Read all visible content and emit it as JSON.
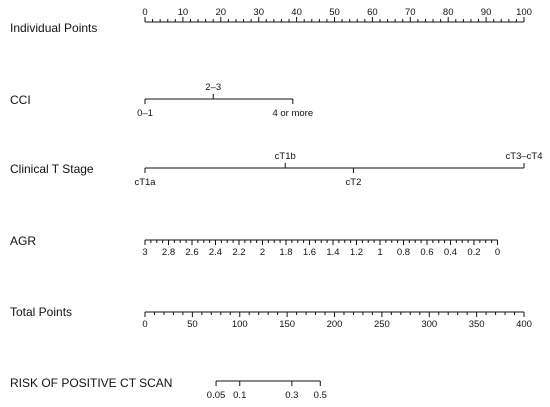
{
  "chart_data": {
    "type": "nomogram",
    "rows": [
      {
        "id": "points",
        "label": "Individual Points",
        "kind": "linear",
        "range": [
          0,
          100
        ],
        "minor_step": 2,
        "major_step": 10,
        "tick_labels": [
          "0",
          "10",
          "20",
          "30",
          "40",
          "50",
          "60",
          "70",
          "80",
          "90",
          "100"
        ],
        "label_side": "above"
      },
      {
        "id": "cci",
        "label": "CCI",
        "kind": "categorical",
        "categories": [
          {
            "label": "0–1",
            "points": 0,
            "side": "below"
          },
          {
            "label": "2–3",
            "points": 18,
            "side": "above"
          },
          {
            "label": "4 or more",
            "points": 39,
            "side": "below"
          }
        ]
      },
      {
        "id": "t_stage",
        "label": "Clinical T Stage",
        "kind": "categorical",
        "categories": [
          {
            "label": "cT1a",
            "points": 0,
            "side": "below"
          },
          {
            "label": "cT1b",
            "points": 37,
            "side": "above"
          },
          {
            "label": "cT2",
            "points": 55,
            "side": "below"
          },
          {
            "label": "cT3–cT4",
            "points": 100,
            "side": "above"
          }
        ]
      },
      {
        "id": "agr",
        "label": "AGR",
        "kind": "linear",
        "values_at_points": [
          [
            3,
            0
          ],
          [
            0,
            93
          ]
        ],
        "minor_step": 0.05,
        "major_step": 0.2,
        "tick_labels": [
          "3",
          "2.8",
          "2.6",
          "2.4",
          "2.2",
          "2",
          "1.8",
          "1.6",
          "1.4",
          "1.2",
          "1",
          "0.8",
          "0.6",
          "0.4",
          "0.2",
          "0"
        ],
        "label_side": "below"
      },
      {
        "id": "total",
        "label": "Total Points",
        "kind": "linear",
        "range": [
          0,
          400
        ],
        "minor_step": 10,
        "major_step": 50,
        "tick_labels": [
          "0",
          "50",
          "100",
          "150",
          "200",
          "250",
          "300",
          "350",
          "400"
        ],
        "label_side": "below"
      },
      {
        "id": "risk",
        "label": "RISK OF POSITIVE CT SCAN",
        "kind": "logit",
        "ticks": [
          {
            "label": "0.05",
            "value": 0.05,
            "total_points": 75
          },
          {
            "label": "0.1",
            "value": 0.1,
            "total_points": 100
          },
          {
            "label": "0.3",
            "value": 0.3,
            "total_points": 155
          },
          {
            "label": "0.5",
            "value": 0.5,
            "total_points": 185
          }
        ],
        "label_side": "below"
      }
    ]
  }
}
